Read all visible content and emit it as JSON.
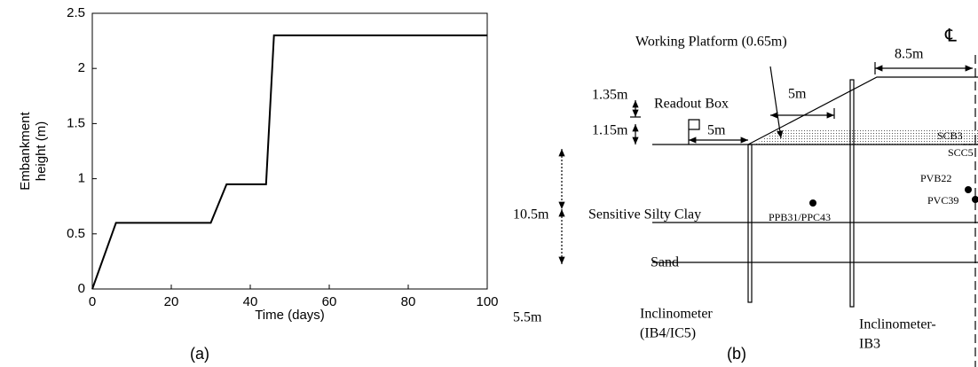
{
  "chart_data": {
    "type": "line",
    "xlabel": "Time (days)",
    "ylabel": "Embankment height (m)",
    "caption": "(a)",
    "x": [
      0,
      6,
      30,
      34,
      44,
      46,
      100
    ],
    "values": [
      0,
      0.6,
      0.6,
      0.95,
      0.95,
      2.3,
      2.3
    ],
    "color": "#000000",
    "xlim": [
      0,
      100
    ],
    "xticks": [
      0,
      20,
      40,
      60,
      80,
      100
    ],
    "ylim": [
      0,
      2.5
    ],
    "yticks": [
      0,
      0.5,
      1,
      1.5,
      2,
      2.5
    ]
  },
  "diagram": {
    "caption": "(b)",
    "labels": [
      "Working Platform (0.65m)",
      "8.5m",
      "℄",
      "1.35m",
      "Readout Box",
      "5m",
      "1.15m",
      "5m",
      "SCB3",
      "SCC5",
      "10.5m",
      "Sensitive Silty Clay",
      "PPB31/PPC43",
      "PVB22",
      "PVC39",
      "Sand",
      "5.5m",
      "Inclinometer",
      "(IB4/IC5)",
      "Inclinometer-",
      "IB3"
    ]
  }
}
